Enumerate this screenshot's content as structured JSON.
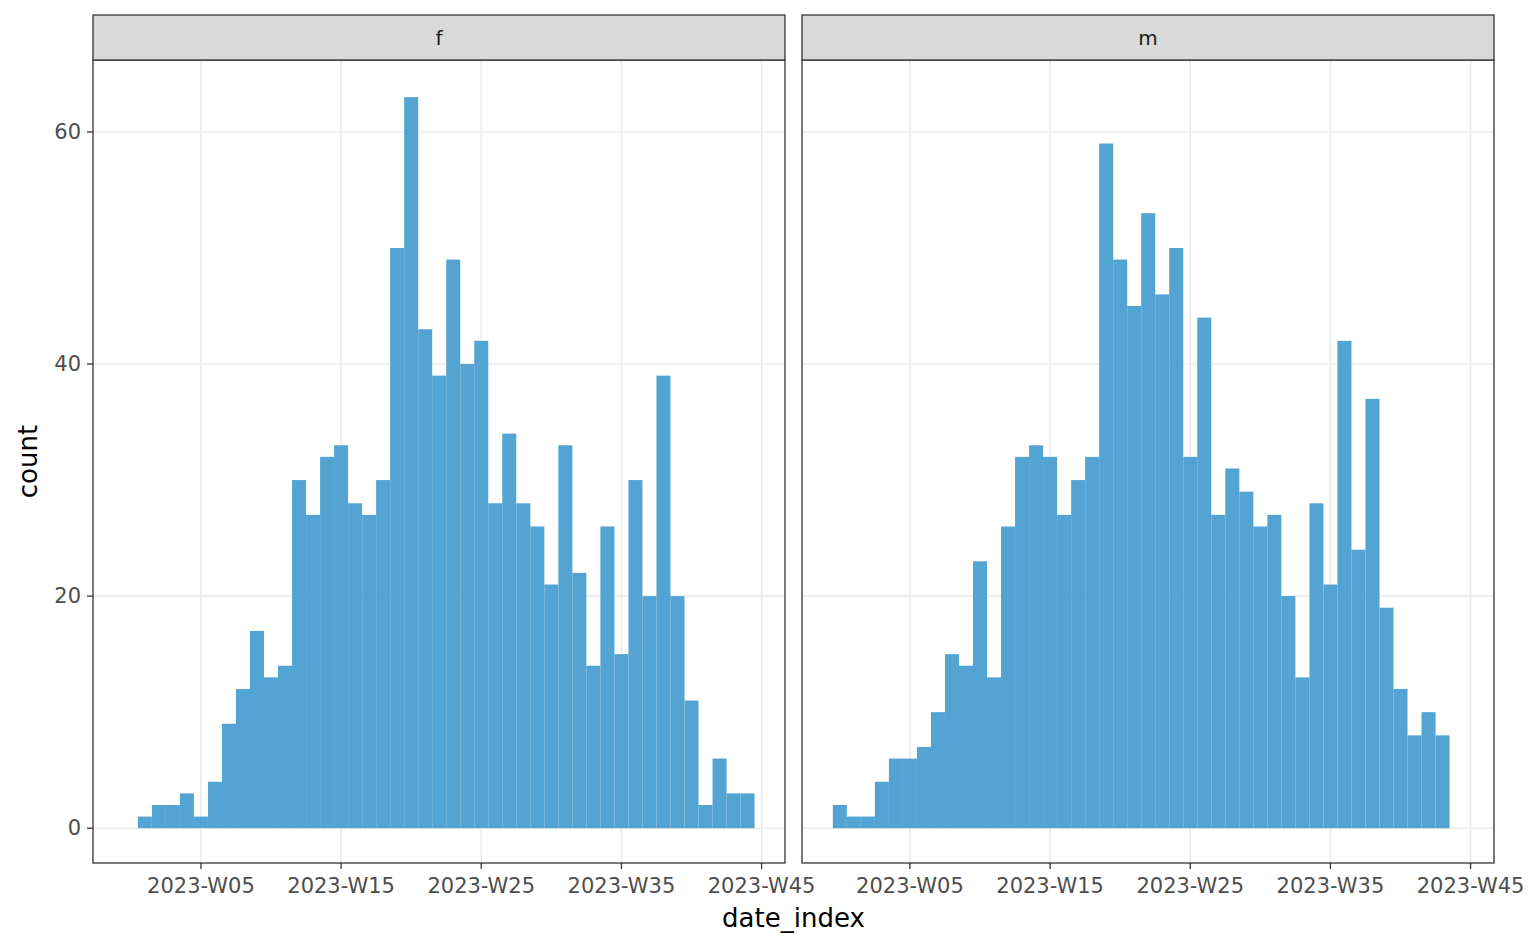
{
  "chart_data": {
    "type": "histogram",
    "x_label": "date_index",
    "y_label": "count",
    "color": "#4a9fd0",
    "grid": true,
    "xlim": [
      -2.7,
      46.67
    ],
    "ylim": [
      -3.0,
      66.2
    ],
    "xticks": [
      {
        "value": 5,
        "label": "2023-W05"
      },
      {
        "value": 15,
        "label": "2023-W15"
      },
      {
        "value": 25,
        "label": "2023-W25"
      },
      {
        "value": 35,
        "label": "2023-W35"
      },
      {
        "value": 45,
        "label": "2023-W45"
      }
    ],
    "yticks": [
      0,
      20,
      40,
      60
    ],
    "series": [
      {
        "name": "f",
        "bins": [
          0.5,
          1.5,
          2.5,
          3.5,
          4.5,
          5.5,
          6.5,
          7.5,
          8.5,
          9.5,
          10.5,
          11.5,
          12.5,
          13.5,
          14.5,
          15.5,
          16.5,
          17.5,
          18.5,
          19.5,
          20.5,
          21.5,
          22.5,
          23.5,
          24.5,
          25.5,
          26.5,
          27.5,
          28.5,
          29.5,
          30.5,
          31.5,
          32.5,
          33.5,
          34.5,
          35.5,
          36.5,
          37.5,
          38.5,
          39.5,
          40.5,
          41.5,
          42.5,
          43.5,
          44.5
        ],
        "values": [
          1,
          2,
          2,
          3,
          1,
          4,
          9,
          12,
          17,
          13,
          14,
          30,
          27,
          32,
          33,
          28,
          27,
          30,
          50,
          63,
          43,
          39,
          49,
          40,
          42,
          28,
          34,
          28,
          26,
          21,
          33,
          22,
          14,
          26,
          15,
          30,
          20,
          39,
          20,
          11,
          2,
          6,
          3,
          3
        ]
      },
      {
        "name": "m",
        "bins": [
          -0.5,
          0.5,
          1.5,
          2.5,
          3.5,
          4.5,
          5.5,
          6.5,
          7.5,
          8.5,
          9.5,
          10.5,
          11.5,
          12.5,
          13.5,
          14.5,
          15.5,
          16.5,
          17.5,
          18.5,
          19.5,
          20.5,
          21.5,
          22.5,
          23.5,
          24.5,
          25.5,
          26.5,
          27.5,
          28.5,
          29.5,
          30.5,
          31.5,
          32.5,
          33.5,
          34.5,
          35.5,
          36.5,
          37.5,
          38.5,
          39.5,
          40.5,
          41.5,
          42.5,
          43.5
        ],
        "values": [
          2,
          1,
          1,
          4,
          6,
          6,
          7,
          10,
          15,
          14,
          23,
          13,
          26,
          32,
          33,
          32,
          27,
          30,
          32,
          59,
          49,
          45,
          53,
          46,
          50,
          32,
          44,
          27,
          31,
          29,
          26,
          27,
          20,
          13,
          28,
          21,
          42,
          24,
          37,
          19,
          12,
          8,
          10,
          8
        ]
      }
    ]
  }
}
